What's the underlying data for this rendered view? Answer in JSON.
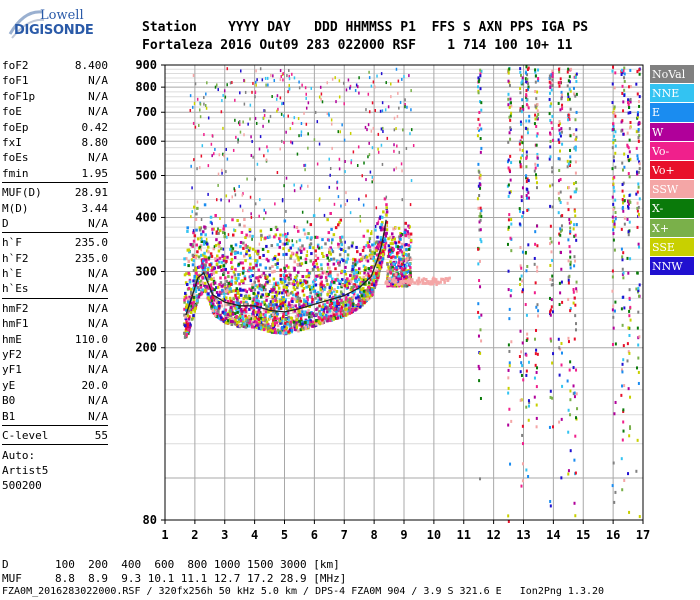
{
  "logo": {
    "brand_top": "Lowell",
    "brand_bottom": "DIGISONDE"
  },
  "header": {
    "line1": "Station    YYYY DAY   DDD HHMMSS P1  FFS S AXN PPS IGA PS",
    "line2": "Fortaleza 2016 Out09 283 022000 RSF    1 714 100 10+ 11"
  },
  "params": [
    {
      "label": "foF2",
      "value": "8.400"
    },
    {
      "label": "foF1",
      "value": "N/A"
    },
    {
      "label": "foF1p",
      "value": "N/A"
    },
    {
      "label": "foE",
      "value": "N/A"
    },
    {
      "label": "foEp",
      "value": "0.42"
    },
    {
      "label": "fxI",
      "value": "8.80"
    },
    {
      "label": "foEs",
      "value": "N/A"
    },
    {
      "label": "fmin",
      "value": "1.95"
    },
    {
      "sep": true
    },
    {
      "label": "MUF(D)",
      "value": "28.91"
    },
    {
      "label": "M(D)",
      "value": "3.44"
    },
    {
      "label": "D",
      "value": "N/A"
    },
    {
      "sep": true
    },
    {
      "label": "h`F",
      "value": "235.0"
    },
    {
      "label": "h`F2",
      "value": "235.0"
    },
    {
      "label": "h`E",
      "value": "N/A"
    },
    {
      "label": "h`Es",
      "value": "N/A"
    },
    {
      "sep": true
    },
    {
      "label": "hmF2",
      "value": "N/A"
    },
    {
      "label": "hmF1",
      "value": "N/A"
    },
    {
      "label": "hmE",
      "value": "110.0"
    },
    {
      "label": "yF2",
      "value": "N/A"
    },
    {
      "label": "yF1",
      "value": "N/A"
    },
    {
      "label": "yE",
      "value": "20.0"
    },
    {
      "label": "B0",
      "value": "N/A"
    },
    {
      "label": "B1",
      "value": "N/A"
    },
    {
      "sep": true
    },
    {
      "label": "C-level",
      "value": "55"
    },
    {
      "sep": true
    }
  ],
  "auto": {
    "line1": "Auto:",
    "line2": "Artist5",
    "line3": "500200"
  },
  "legend": [
    {
      "label": "NoVal",
      "color": "#808080"
    },
    {
      "label": "NNE",
      "color": "#33c3f2"
    },
    {
      "label": "E",
      "color": "#1a8cf0"
    },
    {
      "label": "W",
      "color": "#b0009a"
    },
    {
      "label": "Vo-",
      "color": "#f0208c"
    },
    {
      "label": "Vo+",
      "color": "#e8102a"
    },
    {
      "label": "SSW",
      "color": "#f4a6a6"
    },
    {
      "label": "X-",
      "color": "#0a7a0a"
    },
    {
      "label": "X+",
      "color": "#7ab04a"
    },
    {
      "label": "SSE",
      "color": "#c8d000"
    },
    {
      "label": "NNW",
      "color": "#2010d0"
    }
  ],
  "chart_data": {
    "type": "scatter",
    "xlim": [
      1,
      17
    ],
    "ylim": [
      80,
      900
    ],
    "y_scale": "log",
    "x_ticks": [
      1,
      2,
      3,
      4,
      5,
      6,
      7,
      8,
      9,
      10,
      11,
      12,
      13,
      14,
      15,
      16,
      17
    ],
    "y_ticks": [
      80,
      200,
      300,
      400,
      500,
      600,
      700,
      800,
      900
    ],
    "grid": true,
    "trace": {
      "x": [
        1.7,
        1.9,
        2.1,
        2.3,
        2.6,
        3.0,
        3.5,
        4.0,
        4.5,
        5.0,
        5.5,
        6.0,
        6.5,
        7.0,
        7.5,
        7.9,
        8.1,
        8.25,
        8.35,
        8.4
      ],
      "y": [
        238,
        262,
        290,
        298,
        265,
        255,
        250,
        250,
        244,
        242,
        246,
        252,
        258,
        264,
        275,
        292,
        318,
        345,
        375,
        395
      ]
    }
  },
  "bottom": {
    "d_row": "D       100  200  400  600  800 1000 1500 3000 [km]",
    "muf_row": "MUF     8.8  8.9  9.3 10.1 11.1 12.7 17.2 28.9 [MHz]",
    "footer": "FZA0M_2016283022000.RSF / 320fx256h 50 kHz 5.0 km / DPS-4 FZA0M 904 / 3.9 S 321.6 E   Ion2Png 1.3.20"
  }
}
